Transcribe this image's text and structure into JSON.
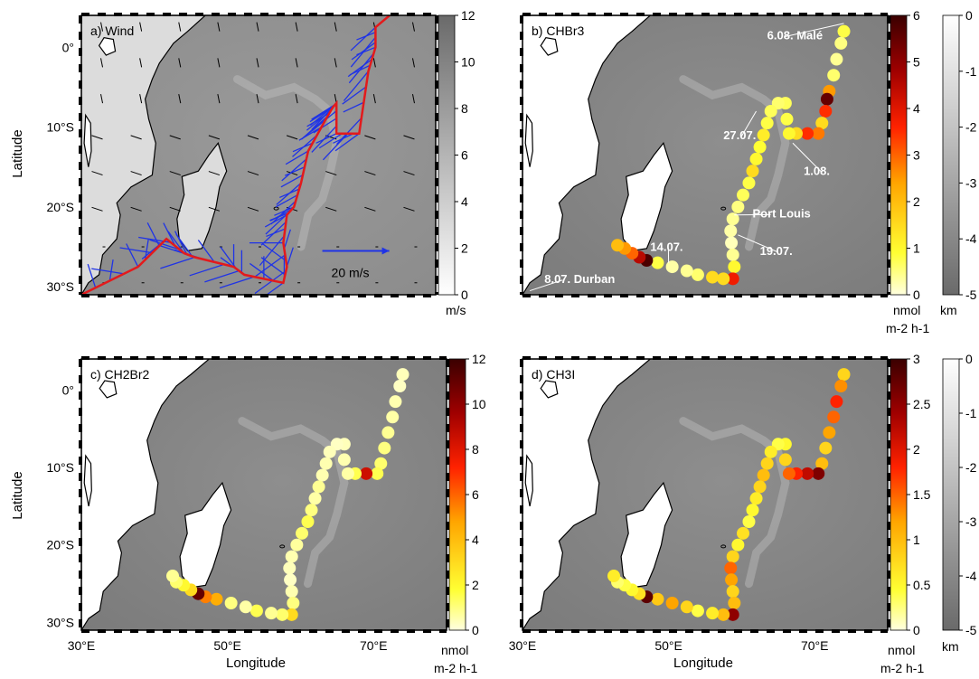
{
  "axis_labels": {
    "latitude": "Latitude",
    "longitude": "Longitude",
    "lon_ticks": [
      "30°E",
      "50°E",
      "70°E"
    ],
    "lat_ticks": [
      "0°",
      "10°S",
      "20°S",
      "30°S"
    ]
  },
  "units": {
    "wind": "m/s",
    "flux_top": "nmol",
    "flux_bottom": "m-2 h-1",
    "depth": "km"
  },
  "wind_scale_label": "20 m/s",
  "colors": {
    "track": "#e31a1c",
    "wind_vectors_ship": "#1f33e6",
    "wind_vectors_model": "#000000",
    "coast": "#000000"
  },
  "chart_data": [
    {
      "panel": "a",
      "title": "a) Wind",
      "type": "map-vector",
      "xlim": [
        30,
        80
      ],
      "ylim": [
        -31,
        4
      ],
      "colorbar": {
        "label": "m/s",
        "ticks": [
          0,
          2,
          4,
          6,
          8,
          10,
          12
        ],
        "range": [
          0,
          12
        ],
        "colormap": "white-to-gray"
      },
      "track": [
        [
          73.5,
          4.0
        ],
        [
          71.5,
          2.5
        ],
        [
          71.5,
          0
        ],
        [
          70.5,
          -3
        ],
        [
          69.2,
          -10.8
        ],
        [
          66,
          -10.8
        ],
        [
          66,
          -7
        ],
        [
          65.5,
          -7.5
        ],
        [
          64.5,
          -9
        ],
        [
          62,
          -13
        ],
        [
          61,
          -17
        ],
        [
          60,
          -20
        ],
        [
          59,
          -21
        ],
        [
          58.5,
          -24.5
        ],
        [
          59,
          -27.5
        ],
        [
          58.5,
          -29.5
        ],
        [
          53,
          -28.5
        ],
        [
          51.5,
          -27.5
        ],
        [
          46,
          -26.3
        ],
        [
          44.5,
          -25.8
        ],
        [
          42,
          -24
        ],
        [
          38,
          -27.5
        ],
        [
          30,
          -31
        ]
      ],
      "scale_vector_ms": 20
    },
    {
      "panel": "b",
      "title": "b) CHBr3",
      "type": "map-scatter",
      "xlim": [
        30,
        80
      ],
      "ylim": [
        -31,
        4
      ],
      "colorbar": {
        "label": "nmol m-2 h-1",
        "ticks": [
          0,
          1,
          2,
          3,
          4,
          5,
          6
        ],
        "range": [
          0,
          6
        ],
        "colormap": "yellow-red-darkred"
      },
      "depth_colorbar": {
        "label": "km",
        "ticks": [
          0,
          -1,
          -2,
          -3,
          -4,
          -5
        ],
        "range": [
          -5,
          0
        ]
      },
      "annotations": [
        "6.08. Malé",
        "27.07.",
        "1.08.",
        "Port Louis",
        "19.07.",
        "14.07.",
        "8.07. Durban"
      ],
      "points": [
        [
          74,
          2,
          0.8
        ],
        [
          73.6,
          0.5,
          0.5
        ],
        [
          73,
          -1.5,
          0.4
        ],
        [
          72.6,
          -3.5,
          0.6
        ],
        [
          72,
          -5.5,
          2.5
        ],
        [
          71.7,
          -6.5,
          5.5
        ],
        [
          71.5,
          -8,
          3.5
        ],
        [
          71,
          -9.5,
          1.5
        ],
        [
          70.5,
          -10.8,
          2.8
        ],
        [
          69,
          -10.8,
          3.5
        ],
        [
          67.5,
          -10.8,
          1.5
        ],
        [
          66.5,
          -10.8,
          1.0
        ],
        [
          66.2,
          -9,
          0.8
        ],
        [
          66,
          -7,
          0.7
        ],
        [
          65,
          -7,
          0.6
        ],
        [
          64,
          -8,
          0.7
        ],
        [
          63.5,
          -9.5,
          0.8
        ],
        [
          63,
          -11,
          1.2
        ],
        [
          62.5,
          -12.5,
          0.9
        ],
        [
          62,
          -14,
          1.0
        ],
        [
          61.5,
          -15.5,
          1.5
        ],
        [
          61,
          -17,
          0.8
        ],
        [
          60.2,
          -18.5,
          0.7
        ],
        [
          59.5,
          -20,
          0.5
        ],
        [
          58.8,
          -21.5,
          0.4
        ],
        [
          58.5,
          -23,
          0.3
        ],
        [
          58.6,
          -24.5,
          0.2
        ],
        [
          58.8,
          -26,
          0.4
        ],
        [
          59,
          -27.5,
          1.0
        ],
        [
          58.8,
          -29,
          3.8
        ],
        [
          57.5,
          -29,
          1.5
        ],
        [
          56,
          -28.8,
          1.5
        ],
        [
          54,
          -28.5,
          0.6
        ],
        [
          52.5,
          -28,
          0.4
        ],
        [
          50.5,
          -27.5,
          0.3
        ],
        [
          48.5,
          -27,
          0.8
        ],
        [
          47,
          -26.7,
          5.8
        ],
        [
          46,
          -26.3,
          4.5
        ],
        [
          45,
          -25.8,
          3.0
        ],
        [
          44,
          -25.2,
          2.5
        ],
        [
          43,
          -24.8,
          2.0
        ]
      ]
    },
    {
      "panel": "c",
      "title": "c) CH2Br2",
      "type": "map-scatter",
      "xlim": [
        30,
        80
      ],
      "ylim": [
        -31,
        4
      ],
      "colorbar": {
        "label": "nmol m-2 h-1",
        "ticks": [
          0,
          2,
          4,
          6,
          8,
          10,
          12
        ],
        "range": [
          0,
          12
        ],
        "colormap": "yellow-red-darkred"
      },
      "points": [
        [
          74,
          2,
          0.4
        ],
        [
          73.6,
          0.5,
          0.3
        ],
        [
          73,
          -1.5,
          0.5
        ],
        [
          72.6,
          -3.5,
          0.6
        ],
        [
          72,
          -5.5,
          0.8
        ],
        [
          71.5,
          -7.5,
          1.0
        ],
        [
          71,
          -9.5,
          1.2
        ],
        [
          70.5,
          -10.8,
          1.5
        ],
        [
          69,
          -10.8,
          8.5
        ],
        [
          67.5,
          -10.8,
          1.5
        ],
        [
          66.5,
          -10.8,
          0.6
        ],
        [
          66,
          -9,
          0.5
        ],
        [
          66,
          -7,
          0.4
        ],
        [
          65,
          -7,
          0.3
        ],
        [
          64,
          -8,
          0.4
        ],
        [
          63.5,
          -9.5,
          0.5
        ],
        [
          63,
          -11,
          0.5
        ],
        [
          62.5,
          -12.5,
          0.8
        ],
        [
          62,
          -14,
          0.6
        ],
        [
          61.5,
          -15.5,
          1.0
        ],
        [
          61,
          -17,
          1.5
        ],
        [
          60.2,
          -18.5,
          1.2
        ],
        [
          59.5,
          -20,
          0.7
        ],
        [
          58.8,
          -21.5,
          0.5
        ],
        [
          58.5,
          -23,
          0.4
        ],
        [
          58.6,
          -24.5,
          0.3
        ],
        [
          58.8,
          -26,
          0.5
        ],
        [
          59,
          -27.5,
          1.0
        ],
        [
          58.8,
          -29,
          3.0
        ],
        [
          57.5,
          -29,
          1.2
        ],
        [
          56,
          -28.8,
          0.8
        ],
        [
          54,
          -28.5,
          1.5
        ],
        [
          52.5,
          -28,
          0.6
        ],
        [
          50.5,
          -27.5,
          1.0
        ],
        [
          48.5,
          -27,
          4.5
        ],
        [
          47,
          -26.7,
          5.5
        ],
        [
          46,
          -26.3,
          11.0
        ],
        [
          45,
          -25.8,
          3.0
        ],
        [
          44,
          -25.2,
          2.0
        ],
        [
          43,
          -24.8,
          1.2
        ],
        [
          42.5,
          -24,
          0.8
        ]
      ]
    },
    {
      "panel": "d",
      "title": "d) CH3I",
      "type": "map-scatter",
      "xlim": [
        30,
        80
      ],
      "ylim": [
        -31,
        4
      ],
      "colorbar": {
        "label": "nmol m-2 h-1",
        "ticks": [
          0,
          0.5,
          1,
          1.5,
          2,
          2.5,
          3
        ],
        "range": [
          0,
          3
        ],
        "colormap": "yellow-red-darkred"
      },
      "depth_colorbar": {
        "label": "km",
        "ticks": [
          0,
          -1,
          -2,
          -3,
          -4,
          -5
        ],
        "range": [
          -5,
          0
        ]
      },
      "points": [
        [
          74,
          2,
          0.8
        ],
        [
          73.6,
          0.5,
          1.3
        ],
        [
          73,
          -1.5,
          1.8
        ],
        [
          72.6,
          -3.5,
          1.5
        ],
        [
          72,
          -5.5,
          1.2
        ],
        [
          71.5,
          -7.5,
          0.8
        ],
        [
          71,
          -9.5,
          1.0
        ],
        [
          70.5,
          -10.8,
          2.6
        ],
        [
          69,
          -10.8,
          2.2
        ],
        [
          67.5,
          -10.8,
          1.8
        ],
        [
          66.5,
          -10.8,
          1.5
        ],
        [
          66,
          -9,
          0.8
        ],
        [
          66,
          -7,
          0.5
        ],
        [
          65,
          -7,
          0.4
        ],
        [
          64,
          -8,
          0.6
        ],
        [
          63.5,
          -9.5,
          0.8
        ],
        [
          63,
          -11,
          1.0
        ],
        [
          62.5,
          -12.5,
          0.8
        ],
        [
          62,
          -14,
          0.6
        ],
        [
          61.5,
          -15.5,
          0.5
        ],
        [
          61,
          -17,
          0.4
        ],
        [
          60.2,
          -18.5,
          0.7
        ],
        [
          59.5,
          -20,
          0.5
        ],
        [
          58.8,
          -21.5,
          0.8
        ],
        [
          58.5,
          -23,
          1.5
        ],
        [
          58.6,
          -24.5,
          1.2
        ],
        [
          58.8,
          -26,
          0.8
        ],
        [
          59,
          -27.5,
          1.0
        ],
        [
          58.8,
          -29,
          2.5
        ],
        [
          57.5,
          -29,
          1.0
        ],
        [
          56,
          -28.8,
          0.6
        ],
        [
          54,
          -28.5,
          0.4
        ],
        [
          52.5,
          -28,
          0.8
        ],
        [
          50.5,
          -27.5,
          1.2
        ],
        [
          48.5,
          -27,
          0.9
        ],
        [
          47,
          -26.7,
          2.8
        ],
        [
          46,
          -26.3,
          0.7
        ],
        [
          45,
          -25.8,
          0.5
        ],
        [
          44,
          -25.2,
          0.4
        ],
        [
          43,
          -24.8,
          0.3
        ],
        [
          42.5,
          -24,
          0.6
        ]
      ]
    }
  ]
}
